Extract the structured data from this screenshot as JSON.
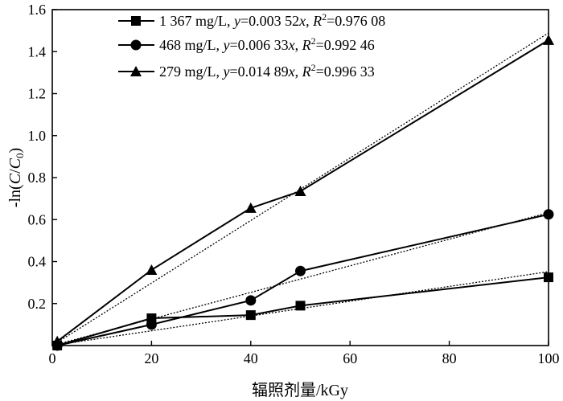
{
  "chart_data": {
    "type": "line",
    "xlabel": "辐照剂量/kGy",
    "ylabel": {
      "prefix": "-ln(",
      "C": "C",
      "slash": "/",
      "C0": "C",
      "sub0": "0",
      "suffix": ")"
    },
    "xlim": [
      0,
      100
    ],
    "ylim": [
      0,
      1.6
    ],
    "xticks": [
      0,
      20,
      40,
      60,
      80,
      100
    ],
    "yticks": [
      0.2,
      0.4,
      0.6,
      0.8,
      1.0,
      1.2,
      1.4,
      1.6
    ],
    "xtick_labels": [
      "0",
      "20",
      "40",
      "60",
      "80",
      "100"
    ],
    "ytick_labels": [
      "0.2",
      "0.4",
      "0.6",
      "0.8",
      "1.0",
      "1.2",
      "1.4",
      "1.6"
    ],
    "grid": false,
    "legend_position": "top-left",
    "series": [
      {
        "marker": "square",
        "legend": {
          "conc": "1 367 mg/L, ",
          "y": "y",
          "eq": "=0.003 52",
          "x": "x",
          "sep": ", ",
          "R": "R",
          "sup": "2",
          "r2": "=0.976 08"
        },
        "x": [
          1,
          20,
          40,
          50,
          100
        ],
        "y": [
          0.0,
          0.13,
          0.145,
          0.19,
          0.325
        ],
        "fit_slope": 0.00352
      },
      {
        "marker": "circle",
        "legend": {
          "conc": "468 mg/L, ",
          "y": "y",
          "eq": "=0.006 33",
          "x": "x",
          "sep": ", ",
          "R": "R",
          "sup": "2",
          "r2": "=0.992 46"
        },
        "x": [
          1,
          20,
          40,
          50,
          100
        ],
        "y": [
          0.0,
          0.1,
          0.215,
          0.355,
          0.625
        ],
        "fit_slope": 0.00633
      },
      {
        "marker": "triangle",
        "legend": {
          "conc": "279 mg/L, ",
          "y": "y",
          "eq": "=0.014 89",
          "x": "x",
          "sep": ", ",
          "R": "R",
          "sup": "2",
          "r2": "=0.996 33"
        },
        "x": [
          1,
          20,
          40,
          50,
          100
        ],
        "y": [
          0.02,
          0.36,
          0.655,
          0.735,
          1.455
        ],
        "fit_slope": 0.01489
      }
    ]
  }
}
